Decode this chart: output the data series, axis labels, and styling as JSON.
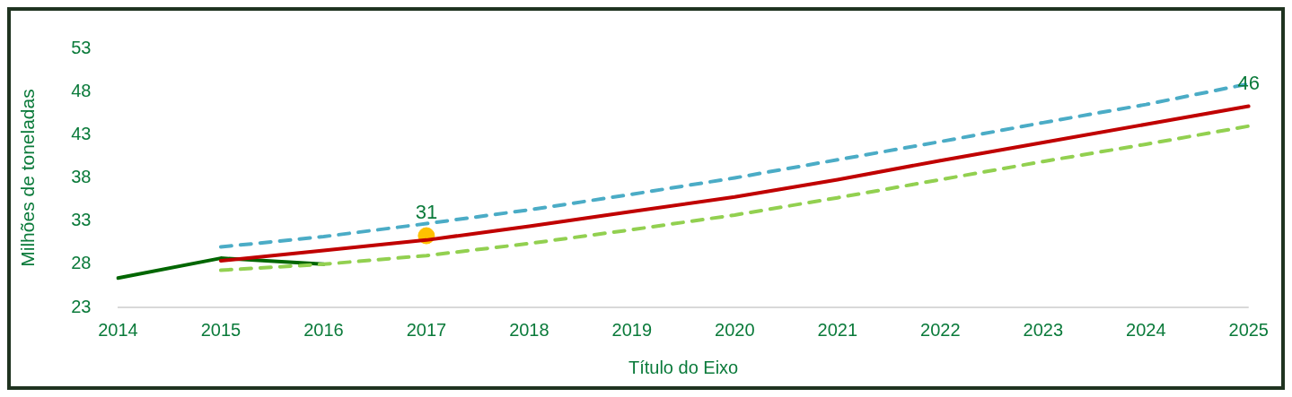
{
  "chart_data": {
    "type": "line",
    "xlabel": "Título do Eixo",
    "ylabel": "Milhões de toneladas",
    "categories": [
      "2014",
      "2015",
      "2016",
      "2017",
      "2018",
      "2019",
      "2020",
      "2021",
      "2022",
      "2023",
      "2024",
      "2025"
    ],
    "ylim": [
      23,
      53
    ],
    "yticks": [
      23,
      28,
      33,
      38,
      43,
      48,
      53
    ],
    "grid": false,
    "legend": false,
    "marker": "none",
    "series": [
      {
        "type": "line",
        "color": "#4bacc6",
        "line_style": "dashed",
        "values": [
          null,
          30.0,
          31.2,
          32.7,
          34.3,
          36.1,
          38.0,
          40.1,
          42.2,
          44.4,
          46.5,
          48.9
        ]
      },
      {
        "type": "line",
        "color": "#92d050",
        "line_style": "dashed",
        "values": [
          null,
          27.3,
          28.0,
          29.0,
          30.4,
          32.0,
          33.7,
          35.7,
          37.8,
          39.9,
          41.9,
          44.0
        ]
      },
      {
        "type": "line",
        "color": "#c00000",
        "line_style": "solid",
        "values": [
          null,
          28.4,
          29.6,
          30.8,
          32.4,
          34.1,
          35.8,
          37.8,
          40.0,
          42.1,
          44.2,
          46.3
        ]
      },
      {
        "type": "line",
        "color": "#006600",
        "line_style": "solid",
        "values": [
          26.4,
          28.7,
          28.0,
          null,
          null,
          null,
          null,
          null,
          null,
          null,
          null,
          null
        ]
      },
      {
        "type": "scatter",
        "color": "#ffc000",
        "marker": "circle",
        "values": [
          null,
          null,
          null,
          31.3,
          null,
          null,
          null,
          null,
          null,
          null,
          null,
          null
        ]
      }
    ],
    "annotations": [
      {
        "text": "31",
        "x": "2017",
        "y": 31.3
      },
      {
        "text": "46",
        "x": "2025",
        "y": 46.3
      }
    ]
  }
}
